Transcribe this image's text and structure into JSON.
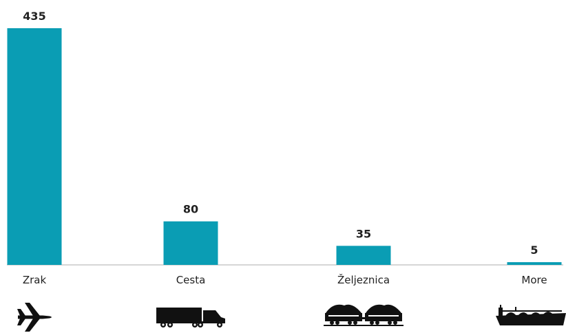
{
  "chart_data": {
    "type": "bar",
    "categories": [
      "Zrak",
      "Cesta",
      "Željeznica",
      "More"
    ],
    "values": [
      435,
      80,
      35,
      5
    ],
    "ylim": [
      0,
      435
    ],
    "grid": false,
    "legend": "none",
    "icons": [
      "airplane-icon",
      "truck-icon",
      "train-icon",
      "ship-icon"
    ]
  },
  "colors": {
    "bar": "#0a9db4",
    "baseline": "#c8c8c8",
    "icon": "#111111",
    "text": "#222222"
  }
}
